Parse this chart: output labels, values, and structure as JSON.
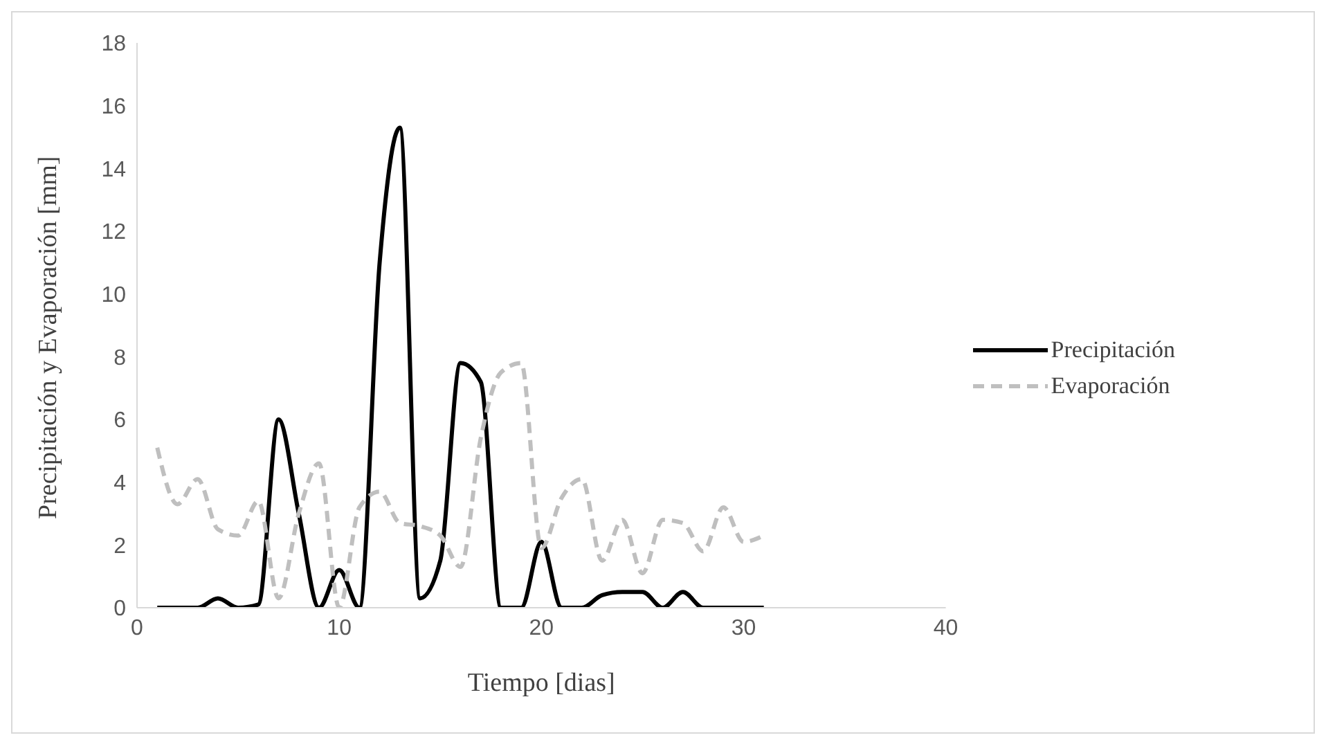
{
  "chart_data": {
    "type": "line",
    "xlabel": "Tiempo [dias]",
    "ylabel": "Precipitación y Evaporación [mm]",
    "x": [
      1,
      2,
      3,
      4,
      5,
      6,
      7,
      8,
      9,
      10,
      11,
      12,
      13,
      14,
      15,
      16,
      17,
      18,
      19,
      20,
      21,
      22,
      23,
      24,
      25,
      26,
      27,
      28,
      29,
      30,
      31
    ],
    "series": [
      {
        "name": "Precipitación",
        "color": "#000000",
        "line_style": "solid",
        "values": [
          0,
          0,
          0,
          0.3,
          0,
          0.1,
          6.0,
          3.0,
          0,
          1.2,
          0,
          11,
          15.3,
          0.3,
          1.5,
          7.8,
          7.2,
          0,
          0,
          2.1,
          0,
          0,
          0.4,
          0.5,
          0.5,
          0,
          0.5,
          0,
          0,
          0,
          0
        ]
      },
      {
        "name": "Evaporación",
        "color": "#bfbfbf",
        "line_style": "dashed",
        "values": [
          5.1,
          3.3,
          4.1,
          2.5,
          2.3,
          3.4,
          0.3,
          3.0,
          4.6,
          0,
          3.2,
          3.7,
          2.7,
          2.6,
          2.3,
          1.3,
          5.4,
          7.5,
          7.8,
          1.9,
          3.5,
          4.1,
          1.5,
          2.8,
          1.1,
          2.8,
          2.7,
          1.8,
          3.2,
          2.1,
          2.3
        ]
      }
    ],
    "xlim": [
      0,
      40
    ],
    "xticks": [
      0,
      10,
      20,
      30,
      40
    ],
    "ylim": [
      0,
      18
    ],
    "yticks": [
      0,
      2,
      4,
      6,
      8,
      10,
      12,
      14,
      16,
      18
    ],
    "grid": false,
    "legend": "right",
    "marker": "none"
  }
}
